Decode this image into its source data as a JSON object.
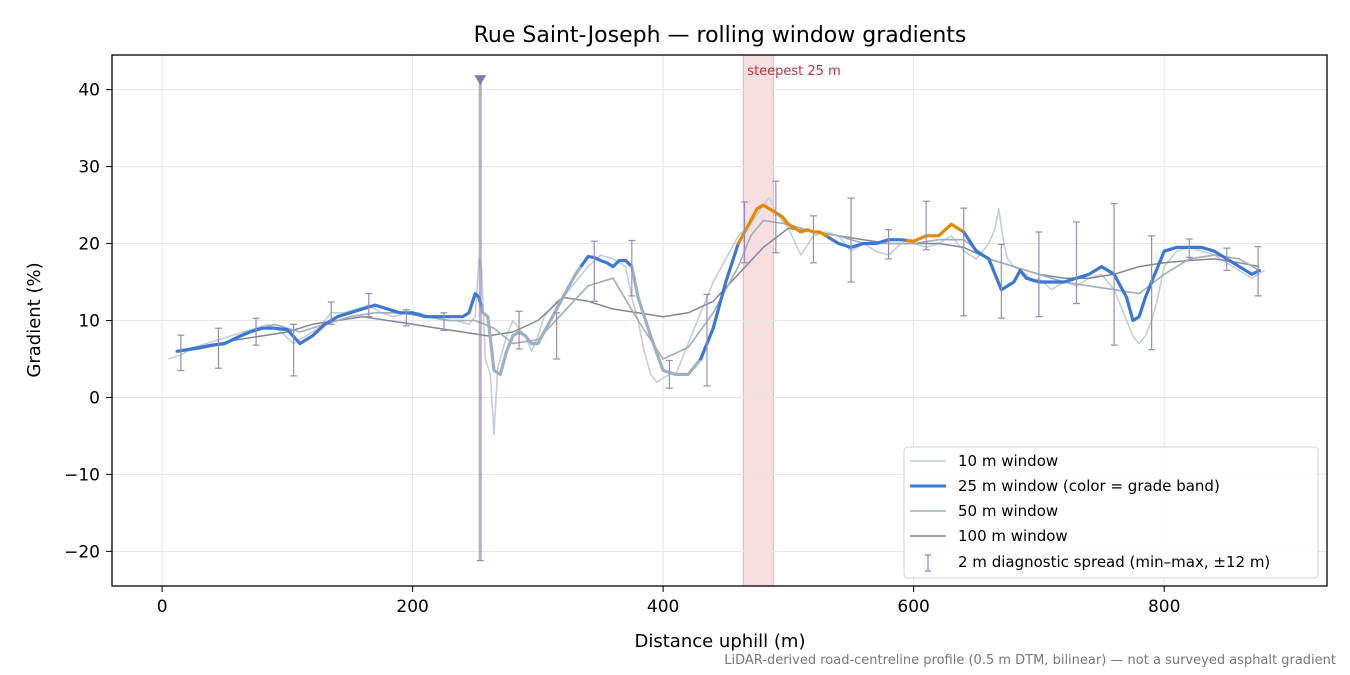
{
  "chart_data": {
    "type": "line",
    "title": "Rue Saint-Joseph — rolling window gradients",
    "xlabel": "Distance uphill (m)",
    "ylabel": "Gradient (%)",
    "xlim": [
      -40,
      930
    ],
    "ylim": [
      -24.5,
      44.5
    ],
    "x_ticks": [
      0,
      200,
      400,
      600,
      800
    ],
    "x_tick_labels": [
      "0",
      "200",
      "400",
      "600",
      "800"
    ],
    "y_ticks": [
      -20,
      -10,
      0,
      10,
      20,
      30,
      40
    ],
    "y_tick_labels": [
      "−20",
      "−10",
      "0",
      "10",
      "20",
      "30",
      "40"
    ],
    "grid": true,
    "legend_position": "lower-right",
    "footnote": "LiDAR-derived road-centreline profile (0.5 m DTM, bilinear) — not a surveyed asphalt gradient",
    "annotations": [
      {
        "type": "span",
        "x_start": 464,
        "x_end": 488,
        "label": "steepest 25 m",
        "color": "#e8a0a8"
      }
    ],
    "colors": {
      "w10": "#c5ced6",
      "w25": "#3a78d4",
      "w25_low": "#9fb0c0",
      "w25_steep": "#e08a00",
      "w50": "#a2adba",
      "w100": "#808896",
      "spread": "#9a8ab8",
      "span": "#e8a0a8"
    },
    "series": [
      {
        "name": "10 m window",
        "x": [
          5,
          15,
          25,
          35,
          45,
          55,
          65,
          75,
          85,
          95,
          105,
          115,
          125,
          135,
          145,
          155,
          165,
          175,
          185,
          195,
          205,
          215,
          225,
          235,
          245,
          250,
          253,
          255,
          258,
          262,
          265,
          268,
          270,
          275,
          280,
          285,
          290,
          295,
          300,
          305,
          310,
          315,
          320,
          330,
          340,
          350,
          360,
          370,
          375,
          380,
          385,
          390,
          395,
          400,
          405,
          410,
          415,
          420,
          425,
          430,
          435,
          440,
          450,
          460,
          470,
          480,
          485,
          490,
          495,
          500,
          510,
          520,
          530,
          540,
          550,
          560,
          570,
          580,
          590,
          600,
          610,
          620,
          630,
          640,
          650,
          660,
          665,
          668,
          672,
          675,
          680,
          690,
          695,
          700,
          710,
          720,
          730,
          740,
          750,
          760,
          770,
          775,
          780,
          785,
          790,
          795,
          800,
          810,
          820,
          830,
          840,
          850,
          860,
          870,
          880
        ],
        "y": [
          5,
          5.5,
          6.5,
          7,
          7.5,
          8,
          8.5,
          9,
          9.5,
          8.5,
          7,
          8,
          9,
          11,
          11,
          11.5,
          12,
          11,
          10.5,
          11,
          11,
          10.5,
          10,
          10,
          9.5,
          10.5,
          18,
          17,
          5,
          3,
          -4.8,
          4,
          5,
          8,
          10,
          9,
          8,
          6,
          8,
          10.5,
          11.5,
          12.5,
          13,
          15,
          17,
          18.5,
          18,
          17,
          13,
          10,
          6,
          3,
          2,
          2.5,
          3,
          3,
          5,
          7,
          9,
          11,
          13,
          15,
          18,
          21,
          22.5,
          25,
          26,
          24,
          23,
          22,
          18.5,
          21,
          21.5,
          21,
          19,
          20,
          19,
          18.5,
          20,
          20,
          19.5,
          20,
          21,
          19,
          18,
          20,
          22,
          24.5,
          20,
          18,
          17,
          16,
          15,
          15.5,
          14,
          15,
          14.5,
          15.5,
          16,
          14,
          10,
          8,
          7,
          8,
          10,
          13,
          17,
          19,
          19.5,
          19,
          18.5,
          17.5,
          16.5,
          15.5,
          16.5
        ]
      },
      {
        "name": "25 m window (color = grade band)",
        "x": [
          12,
          20,
          30,
          40,
          50,
          60,
          70,
          80,
          90,
          100,
          110,
          120,
          130,
          140,
          150,
          160,
          170,
          180,
          190,
          200,
          210,
          220,
          230,
          240,
          245,
          250,
          253,
          256,
          260,
          265,
          270,
          275,
          280,
          285,
          290,
          295,
          300,
          305,
          310,
          315,
          320,
          330,
          340,
          345,
          350,
          355,
          360,
          365,
          370,
          375,
          380,
          390,
          400,
          410,
          420,
          430,
          440,
          450,
          460,
          465,
          470,
          475,
          480,
          485,
          490,
          495,
          500,
          505,
          510,
          515,
          520,
          525,
          530,
          540,
          550,
          560,
          570,
          580,
          590,
          600,
          610,
          620,
          630,
          640,
          650,
          660,
          670,
          680,
          685,
          690,
          700,
          710,
          720,
          730,
          740,
          750,
          760,
          770,
          775,
          780,
          785,
          790,
          800,
          810,
          820,
          830,
          840,
          850,
          860,
          870,
          876
        ],
        "y": [
          6,
          6.2,
          6.5,
          6.8,
          7,
          7.8,
          8.5,
          9,
          9,
          8.8,
          7,
          8,
          9.5,
          10.5,
          11,
          11.5,
          12,
          11.5,
          11,
          11,
          10.5,
          10.5,
          10.5,
          10.5,
          11,
          13.5,
          13,
          11,
          10.5,
          3.5,
          3,
          6,
          8,
          8.5,
          8,
          7,
          7,
          8.5,
          10,
          11.5,
          13,
          16,
          18.3,
          18.2,
          17.8,
          17.5,
          17,
          17.8,
          17.8,
          17,
          13,
          8,
          3.5,
          3,
          3,
          5,
          9,
          15,
          20,
          21.5,
          23,
          24.5,
          25,
          24.5,
          24,
          23.5,
          22.5,
          22,
          21.5,
          21.8,
          21.5,
          21.5,
          21,
          20,
          19.5,
          20,
          20,
          20.5,
          20.5,
          20.3,
          21,
          21,
          22.5,
          21.5,
          19,
          18,
          14,
          15,
          16.5,
          15.5,
          15,
          15,
          15,
          15.5,
          16,
          17,
          16,
          13,
          10,
          10.5,
          13,
          15,
          19,
          19.5,
          19.5,
          19.5,
          19,
          18,
          17,
          16,
          16.5
        ],
        "bands": [
          {
            "x": [
              12,
              255
            ],
            "band": "moderate"
          },
          {
            "x": [
              255,
              335
            ],
            "band": "low"
          },
          {
            "x": [
              335,
              375
            ],
            "band": "moderate"
          },
          {
            "x": [
              375,
              430
            ],
            "band": "low"
          },
          {
            "x": [
              430,
              460
            ],
            "band": "moderate"
          },
          {
            "x": [
              460,
              532
            ],
            "band": "steep"
          },
          {
            "x": [
              532,
              595
            ],
            "band": "moderate"
          },
          {
            "x": [
              595,
              640
            ],
            "band": "steep"
          },
          {
            "x": [
              640,
              876
            ],
            "band": "moderate"
          }
        ]
      },
      {
        "name": "50 m window",
        "x": [
          15,
          30,
          50,
          70,
          90,
          110,
          130,
          150,
          170,
          190,
          210,
          230,
          250,
          265,
          280,
          300,
          320,
          340,
          360,
          380,
          400,
          420,
          440,
          460,
          470,
          480,
          500,
          520,
          540,
          560,
          580,
          600,
          620,
          640,
          660,
          680,
          700,
          720,
          740,
          760,
          780,
          800,
          820,
          840,
          860,
          876
        ],
        "y": [
          6,
          6.3,
          7,
          8.5,
          9.5,
          8.5,
          9.5,
          10.5,
          11,
          11,
          10.5,
          10,
          10,
          9,
          7,
          7.5,
          11,
          14.5,
          15.5,
          10,
          5,
          6.5,
          11,
          17,
          21,
          23,
          22.5,
          21.5,
          21,
          20,
          20,
          20,
          20.5,
          20.5,
          18,
          17,
          16,
          15,
          14.5,
          14,
          13.5,
          16,
          18,
          18.5,
          18,
          16.5
        ]
      },
      {
        "name": "100 m window",
        "x": [
          15,
          40,
          60,
          80,
          100,
          120,
          140,
          160,
          180,
          200,
          220,
          240,
          260,
          280,
          300,
          320,
          340,
          360,
          380,
          400,
          420,
          440,
          460,
          480,
          500,
          520,
          540,
          560,
          580,
          600,
          620,
          640,
          660,
          680,
          700,
          720,
          740,
          760,
          780,
          800,
          820,
          840,
          860,
          876
        ],
        "y": [
          6,
          6.8,
          7.5,
          8,
          8.5,
          9.5,
          10,
          10.5,
          10,
          9.5,
          9,
          8.5,
          8,
          8.5,
          10,
          13,
          12.5,
          11.5,
          11,
          10.5,
          11,
          12.5,
          16,
          19.5,
          22,
          21.5,
          21,
          20.5,
          20,
          20,
          20,
          19.5,
          18,
          17,
          16,
          15.5,
          15.5,
          16,
          17,
          17.5,
          17.8,
          18,
          17.5,
          17
        ]
      }
    ],
    "spread_bars": {
      "name": "2 m diagnostic spread (min–max, ±12 m)",
      "x": [
        15,
        45,
        75,
        105,
        135,
        165,
        195,
        225,
        254,
        285,
        315,
        345,
        375,
        405,
        435,
        465,
        490,
        520,
        550,
        580,
        610,
        640,
        670,
        700,
        730,
        760,
        790,
        820,
        850,
        875
      ],
      "mid": [
        6,
        6.5,
        8.5,
        9,
        11,
        12,
        10.5,
        10,
        10,
        9,
        8.5,
        16.5,
        17,
        3,
        7.5,
        21.5,
        23,
        21.5,
        20.5,
        20,
        22.5,
        17,
        14,
        16,
        17.5,
        16,
        13.5,
        19.5,
        18,
        16.5
      ],
      "low": [
        3.5,
        3.8,
        6.8,
        2.8,
        9.5,
        10.5,
        9.3,
        8.7,
        -21.2,
        6.3,
        5,
        12.5,
        13.2,
        1.2,
        1.5,
        17.5,
        18.8,
        17.5,
        15,
        18,
        19.2,
        10.6,
        10.3,
        10.5,
        12.2,
        6.8,
        6.2,
        18.2,
        16.5,
        13.2
      ],
      "high": [
        8.1,
        9,
        10.3,
        9.5,
        12.4,
        13.5,
        11.4,
        11,
        41.5,
        11.2,
        11,
        20.3,
        20.4,
        4.8,
        13.4,
        25.4,
        28.1,
        23.6,
        25.9,
        21.8,
        25.5,
        24.6,
        19.9,
        21.5,
        22.8,
        25.2,
        21,
        20.6,
        19.4,
        19.6
      ]
    }
  }
}
